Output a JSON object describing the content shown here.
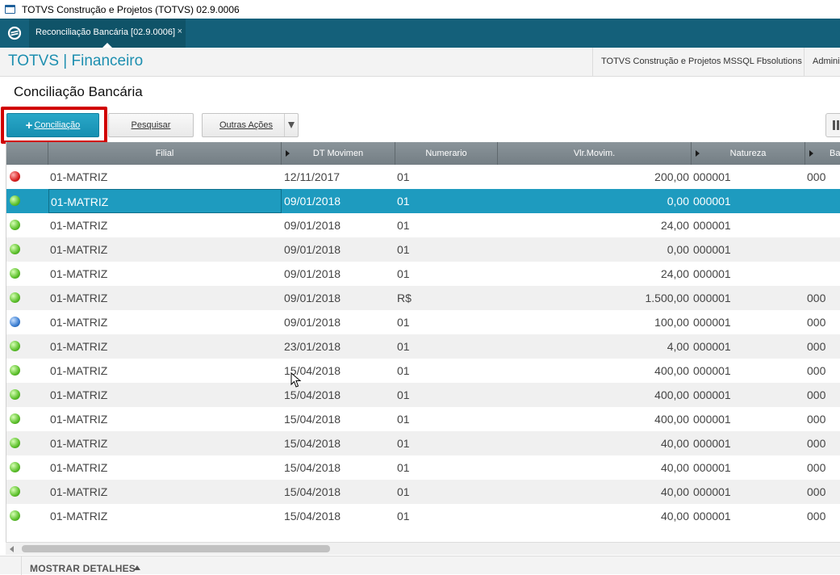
{
  "window": {
    "title": "TOTVS Construção e Projetos (TOTVS) 02.9.0006"
  },
  "tab": {
    "label": "Reconciliação Bancária [02.9.0006]",
    "close": "×"
  },
  "module": {
    "title": "TOTVS | Financeiro",
    "company": "TOTVS Construção e Projetos MSSQL Fbsolutions",
    "user": "Administrador"
  },
  "page": {
    "title": "Conciliação Bancária"
  },
  "toolbar": {
    "conciliacao_plus": "+",
    "conciliacao_label": "Conciliação",
    "pesquisar_label": "Pesquisar",
    "outras_label": "Outras Ações"
  },
  "grid": {
    "columns": {
      "filial": "Filial",
      "dt": "DT Movimen",
      "numerario": "Numerario",
      "valor": "Vlr.Movim.",
      "natureza": "Natureza",
      "banco": "Banco"
    },
    "rows": [
      {
        "status": "red",
        "filial": "01-MATRIZ",
        "dt": "12/11/2017",
        "numerario": "01",
        "valor": "200,00",
        "natureza": "000001",
        "banco": "000",
        "selected": false
      },
      {
        "status": "green",
        "filial": "01-MATRIZ",
        "dt": "09/01/2018",
        "numerario": "01",
        "valor": "0,00",
        "natureza": "000001",
        "banco": "",
        "selected": true
      },
      {
        "status": "green",
        "filial": "01-MATRIZ",
        "dt": "09/01/2018",
        "numerario": "01",
        "valor": "24,00",
        "natureza": "000001",
        "banco": "",
        "selected": false
      },
      {
        "status": "green",
        "filial": "01-MATRIZ",
        "dt": "09/01/2018",
        "numerario": "01",
        "valor": "0,00",
        "natureza": "000001",
        "banco": "",
        "selected": false
      },
      {
        "status": "green",
        "filial": "01-MATRIZ",
        "dt": "09/01/2018",
        "numerario": "01",
        "valor": "24,00",
        "natureza": "000001",
        "banco": "",
        "selected": false
      },
      {
        "status": "green",
        "filial": "01-MATRIZ",
        "dt": "09/01/2018",
        "numerario": "R$",
        "valor": "1.500,00",
        "natureza": "000001",
        "banco": "000",
        "selected": false
      },
      {
        "status": "blue",
        "filial": "01-MATRIZ",
        "dt": "09/01/2018",
        "numerario": "01",
        "valor": "100,00",
        "natureza": "000001",
        "banco": "000",
        "selected": false
      },
      {
        "status": "green",
        "filial": "01-MATRIZ",
        "dt": "23/01/2018",
        "numerario": "01",
        "valor": "4,00",
        "natureza": "000001",
        "banco": "000",
        "selected": false
      },
      {
        "status": "green",
        "filial": "01-MATRIZ",
        "dt": "15/04/2018",
        "numerario": "01",
        "valor": "400,00",
        "natureza": "000001",
        "banco": "000",
        "selected": false
      },
      {
        "status": "green",
        "filial": "01-MATRIZ",
        "dt": "15/04/2018",
        "numerario": "01",
        "valor": "400,00",
        "natureza": "000001",
        "banco": "000",
        "selected": false
      },
      {
        "status": "green",
        "filial": "01-MATRIZ",
        "dt": "15/04/2018",
        "numerario": "01",
        "valor": "400,00",
        "natureza": "000001",
        "banco": "000",
        "selected": false
      },
      {
        "status": "green",
        "filial": "01-MATRIZ",
        "dt": "15/04/2018",
        "numerario": "01",
        "valor": "40,00",
        "natureza": "000001",
        "banco": "000",
        "selected": false
      },
      {
        "status": "green",
        "filial": "01-MATRIZ",
        "dt": "15/04/2018",
        "numerario": "01",
        "valor": "40,00",
        "natureza": "000001",
        "banco": "000",
        "selected": false
      },
      {
        "status": "green",
        "filial": "01-MATRIZ",
        "dt": "15/04/2018",
        "numerario": "01",
        "valor": "40,00",
        "natureza": "000001",
        "banco": "000",
        "selected": false
      },
      {
        "status": "green",
        "filial": "01-MATRIZ",
        "dt": "15/04/2018",
        "numerario": "01",
        "valor": "40,00",
        "natureza": "000001",
        "banco": "000",
        "selected": false
      }
    ]
  },
  "footer": {
    "details_label": "MOSTRAR DETALHES"
  },
  "colors": {
    "accent": "#1e9bbf",
    "tabbar": "#14607a",
    "highlight": "#d10000"
  }
}
